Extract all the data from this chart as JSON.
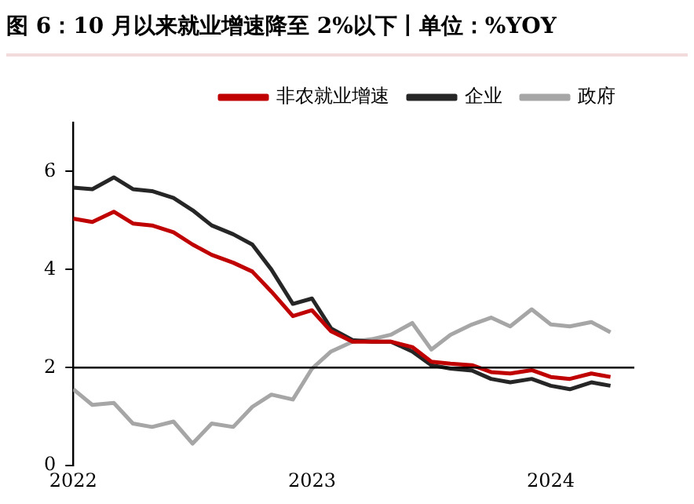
{
  "chart_data": {
    "type": "line",
    "title": "图 6：10 月以来就业增速降至 2%以下丨单位：%YOY",
    "x": [
      2022,
      2022.08,
      2022.17,
      2022.25,
      2022.33,
      2022.42,
      2022.5,
      2022.58,
      2022.67,
      2022.75,
      2022.83,
      2022.92,
      2023,
      2023.08,
      2023.17,
      2023.25,
      2023.33,
      2023.42,
      2023.5,
      2023.58,
      2023.67,
      2023.75,
      2023.83,
      2023.92,
      2024,
      2024.08,
      2024.17,
      2024.25
    ],
    "series": [
      {
        "name": "非农就业增速",
        "color": "#c00000",
        "values": [
          5.04,
          4.97,
          5.18,
          4.94,
          4.9,
          4.76,
          4.51,
          4.3,
          4.14,
          3.96,
          3.55,
          3.05,
          3.17,
          2.74,
          2.53,
          2.53,
          2.53,
          2.42,
          2.12,
          2.08,
          2.05,
          1.91,
          1.88,
          1.95,
          1.81,
          1.77,
          1.88,
          1.81
        ]
      },
      {
        "name": "企业",
        "color": "#262626",
        "values": [
          5.67,
          5.64,
          5.88,
          5.64,
          5.6,
          5.46,
          5.21,
          4.9,
          4.72,
          4.51,
          4.0,
          3.3,
          3.41,
          2.8,
          2.56,
          2.53,
          2.53,
          2.33,
          2.05,
          1.98,
          1.94,
          1.77,
          1.7,
          1.77,
          1.63,
          1.56,
          1.7,
          1.63
        ]
      },
      {
        "name": "政府",
        "color": "#a6a6a6",
        "values": [
          1.56,
          1.24,
          1.28,
          0.86,
          0.79,
          0.9,
          0.45,
          0.86,
          0.79,
          1.2,
          1.45,
          1.35,
          1.98,
          2.33,
          2.53,
          2.58,
          2.67,
          2.91,
          2.37,
          2.67,
          2.88,
          3.02,
          2.84,
          3.19,
          2.88,
          2.84,
          2.93,
          2.72
        ]
      }
    ],
    "xlim": [
      2022,
      2024.35
    ],
    "xticks": [
      2022,
      2023,
      2024
    ],
    "ylim": [
      0,
      7
    ],
    "yticks": [
      0,
      2,
      4,
      6
    ],
    "ref_lines": [
      {
        "axis": "y",
        "value": 2,
        "color": "#000000"
      }
    ],
    "grid": false,
    "legend": "top",
    "marker": "none",
    "line_style": "solid"
  }
}
